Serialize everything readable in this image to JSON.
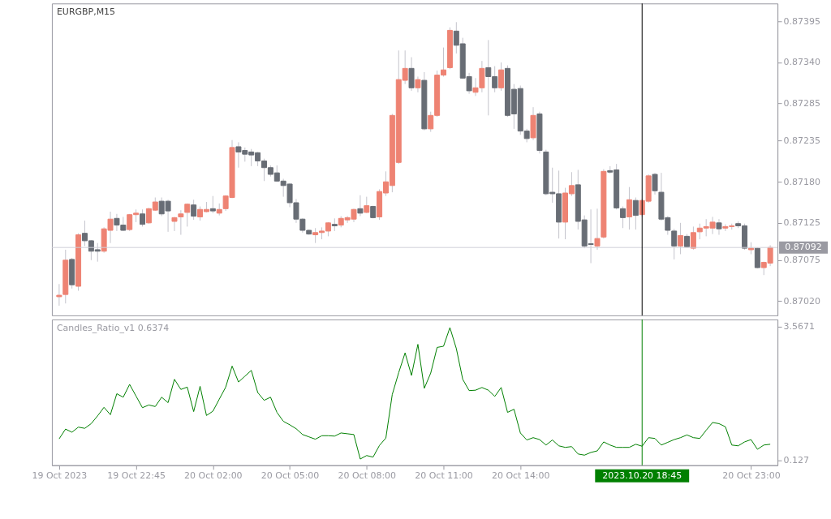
{
  "chart_data": [
    {
      "type": "candlestick",
      "title": "EURGBP,M15",
      "categories": [
        "19 Oct 2023",
        null,
        null,
        null,
        null,
        null,
        null,
        null,
        null,
        null,
        null,
        null,
        "19 Oct 22:45",
        null,
        null,
        null,
        null,
        null,
        null,
        null,
        null,
        null,
        null,
        null,
        "20 Oct 02:00",
        null,
        null,
        null,
        null,
        null,
        null,
        null,
        null,
        null,
        null,
        null,
        "20 Oct 05:00",
        null,
        null,
        null,
        null,
        null,
        null,
        null,
        null,
        null,
        null,
        null,
        "20 Oct 08:00",
        null,
        null,
        null,
        null,
        null,
        null,
        null,
        null,
        null,
        null,
        null,
        "20 Oct 11:00",
        null,
        null,
        null,
        null,
        null,
        null,
        null,
        null,
        null,
        null,
        null,
        "20 Oct 14:00",
        null,
        null,
        null,
        null,
        null,
        null,
        null,
        null,
        null,
        null,
        null,
        null,
        null,
        null,
        null,
        null,
        null,
        null,
        "2023.10.20 18:45",
        null,
        null,
        null,
        null,
        null,
        null,
        null,
        null,
        null,
        null,
        null,
        null,
        null,
        null,
        null,
        null,
        "20 Oct 23:00",
        null,
        null,
        null
      ],
      "ohlc": [
        [
          0.87026,
          0.87043,
          0.87014,
          0.87028
        ],
        [
          0.87029,
          0.87089,
          0.87017,
          0.87075
        ],
        [
          0.87076,
          0.87078,
          0.87037,
          0.87042
        ],
        [
          0.8704,
          0.87111,
          0.87034,
          0.87109
        ],
        [
          0.87111,
          0.87128,
          0.87094,
          0.87101
        ],
        [
          0.87101,
          0.87102,
          0.87075,
          0.87087
        ],
        [
          0.87089,
          0.87098,
          0.87073,
          0.87087
        ],
        [
          0.87087,
          0.87119,
          0.87085,
          0.87117
        ],
        [
          0.87115,
          0.8714,
          0.87098,
          0.8713
        ],
        [
          0.87131,
          0.87137,
          0.87114,
          0.87122
        ],
        [
          0.87122,
          0.87133,
          0.87114,
          0.87115
        ],
        [
          0.87116,
          0.87137,
          0.87114,
          0.87136
        ],
        [
          0.87136,
          0.87143,
          0.87126,
          0.87138
        ],
        [
          0.87137,
          0.87143,
          0.8712,
          0.87123
        ],
        [
          0.87125,
          0.87145,
          0.87124,
          0.87144
        ],
        [
          0.87142,
          0.87159,
          0.87141,
          0.87153
        ],
        [
          0.87154,
          0.87159,
          0.87134,
          0.87137
        ],
        [
          0.87154,
          0.87156,
          0.87113,
          0.87141
        ],
        [
          0.87127,
          0.87133,
          0.87114,
          0.87132
        ],
        [
          0.87133,
          0.87142,
          0.87109,
          0.87137
        ],
        [
          0.87139,
          0.87151,
          0.8712,
          0.8715
        ],
        [
          0.87149,
          0.87156,
          0.87129,
          0.87134
        ],
        [
          0.87133,
          0.87147,
          0.87128,
          0.87143
        ],
        [
          0.8714,
          0.87153,
          0.87139,
          0.87143
        ],
        [
          0.87144,
          0.87161,
          0.87138,
          0.87141
        ],
        [
          0.87138,
          0.87151,
          0.87135,
          0.87143
        ],
        [
          0.87144,
          0.87162,
          0.87141,
          0.87161
        ],
        [
          0.87159,
          0.87236,
          0.87158,
          0.87226
        ],
        [
          0.87227,
          0.87233,
          0.87199,
          0.8722
        ],
        [
          0.87222,
          0.87226,
          0.87207,
          0.87217
        ],
        [
          0.8722,
          0.87224,
          0.87201,
          0.87216
        ],
        [
          0.87219,
          0.8722,
          0.87201,
          0.87208
        ],
        [
          0.87208,
          0.87211,
          0.87181,
          0.87199
        ],
        [
          0.87199,
          0.87202,
          0.87187,
          0.8719
        ],
        [
          0.87192,
          0.87202,
          0.8718,
          0.87181
        ],
        [
          0.87181,
          0.87184,
          0.8716,
          0.87175
        ],
        [
          0.87177,
          0.87178,
          0.87146,
          0.87152
        ],
        [
          0.87152,
          0.87157,
          0.87125,
          0.8713
        ],
        [
          0.8713,
          0.87131,
          0.87112,
          0.87115
        ],
        [
          0.87115,
          0.87116,
          0.87109,
          0.8711
        ],
        [
          0.87109,
          0.87118,
          0.87098,
          0.87112
        ],
        [
          0.87112,
          0.87119,
          0.87103,
          0.87114
        ],
        [
          0.87114,
          0.87126,
          0.87107,
          0.87125
        ],
        [
          0.87123,
          0.87131,
          0.87114,
          0.87121
        ],
        [
          0.87122,
          0.87134,
          0.87119,
          0.87131
        ],
        [
          0.87129,
          0.87134,
          0.87125,
          0.87132
        ],
        [
          0.8713,
          0.87144,
          0.87126,
          0.87143
        ],
        [
          0.87144,
          0.87162,
          0.87134,
          0.87138
        ],
        [
          0.87139,
          0.8716,
          0.87138,
          0.87148
        ],
        [
          0.87147,
          0.87148,
          0.87131,
          0.87132
        ],
        [
          0.87133,
          0.8717,
          0.87129,
          0.87167
        ],
        [
          0.87165,
          0.87194,
          0.87161,
          0.8718
        ],
        [
          0.87175,
          0.87271,
          0.87166,
          0.87269
        ],
        [
          0.87206,
          0.87356,
          0.87204,
          0.87317
        ],
        [
          0.87316,
          0.87356,
          0.87311,
          0.87332
        ],
        [
          0.87332,
          0.87347,
          0.87302,
          0.87306
        ],
        [
          0.87306,
          0.87321,
          0.873,
          0.87317
        ],
        [
          0.87316,
          0.87327,
          0.87249,
          0.87251
        ],
        [
          0.87251,
          0.87274,
          0.87247,
          0.87269
        ],
        [
          0.87269,
          0.87329,
          0.87267,
          0.87323
        ],
        [
          0.87323,
          0.8736,
          0.87321,
          0.8733
        ],
        [
          0.87333,
          0.87387,
          0.87331,
          0.87383
        ],
        [
          0.87382,
          0.87394,
          0.87352,
          0.87363
        ],
        [
          0.87365,
          0.87373,
          0.87318,
          0.87319
        ],
        [
          0.87321,
          0.87326,
          0.87298,
          0.87302
        ],
        [
          0.873,
          0.87319,
          0.87295,
          0.87306
        ],
        [
          0.87306,
          0.87342,
          0.873,
          0.87332
        ],
        [
          0.87333,
          0.8737,
          0.87269,
          0.87321
        ],
        [
          0.87321,
          0.87335,
          0.873,
          0.87306
        ],
        [
          0.87306,
          0.8734,
          0.87302,
          0.8733
        ],
        [
          0.87332,
          0.87336,
          0.87267,
          0.87269
        ],
        [
          0.87304,
          0.87311,
          0.87251,
          0.87271
        ],
        [
          0.87305,
          0.87309,
          0.87243,
          0.87248
        ],
        [
          0.87248,
          0.87251,
          0.87233,
          0.87238
        ],
        [
          0.87239,
          0.8728,
          0.87236,
          0.87269
        ],
        [
          0.87271,
          0.87274,
          0.87218,
          0.87222
        ],
        [
          0.8722,
          0.87223,
          0.87162,
          0.87164
        ],
        [
          0.87166,
          0.87199,
          0.87152,
          0.87164
        ],
        [
          0.87164,
          0.87195,
          0.87104,
          0.87126
        ],
        [
          0.87126,
          0.87172,
          0.87103,
          0.87165
        ],
        [
          0.87164,
          0.87193,
          0.87161,
          0.87175
        ],
        [
          0.87176,
          0.87196,
          0.87116,
          0.87127
        ],
        [
          0.87129,
          0.87135,
          0.87091,
          0.87094
        ],
        [
          0.87097,
          0.87143,
          0.87071,
          0.87096
        ],
        [
          0.87094,
          0.87144,
          0.87089,
          0.87104
        ],
        [
          0.87106,
          0.87197,
          0.87104,
          0.87194
        ],
        [
          0.87195,
          0.87201,
          0.87191,
          0.87193
        ],
        [
          0.87196,
          0.87204,
          0.87143,
          0.87145
        ],
        [
          0.87144,
          0.87147,
          0.87118,
          0.87132
        ],
        [
          0.87133,
          0.87173,
          0.87116,
          0.87156
        ],
        [
          0.87155,
          0.87159,
          0.87116,
          0.87135
        ],
        [
          0.87136,
          0.87157,
          0.87133,
          0.87155
        ],
        [
          0.87154,
          0.8719,
          0.87152,
          0.87188
        ],
        [
          0.8719,
          0.87192,
          0.87163,
          0.87168
        ],
        [
          0.87166,
          0.87192,
          0.87128,
          0.8713
        ],
        [
          0.87132,
          0.87134,
          0.87109,
          0.87115
        ],
        [
          0.87114,
          0.87117,
          0.87076,
          0.87094
        ],
        [
          0.87094,
          0.87125,
          0.87083,
          0.87108
        ],
        [
          0.87107,
          0.8711,
          0.87092,
          0.87093
        ],
        [
          0.87091,
          0.8712,
          0.87089,
          0.87112
        ],
        [
          0.87113,
          0.87124,
          0.87103,
          0.87118
        ],
        [
          0.87118,
          0.8713,
          0.87107,
          0.8712
        ],
        [
          0.87118,
          0.87133,
          0.8711,
          0.87126
        ],
        [
          0.87125,
          0.8713,
          0.87109,
          0.87117
        ],
        [
          0.87118,
          0.87123,
          0.87114,
          0.8712
        ],
        [
          0.8712,
          0.87124,
          0.87116,
          0.87121
        ],
        [
          0.87124,
          0.87127,
          0.87118,
          0.87121
        ],
        [
          0.87121,
          0.87124,
          0.87089,
          0.87091
        ],
        [
          0.87089,
          0.87099,
          0.87083,
          0.87091
        ],
        [
          0.87091,
          0.87092,
          0.87064,
          0.87065
        ],
        [
          0.87065,
          0.87073,
          0.87055,
          0.87072
        ],
        [
          0.87071,
          0.87095,
          0.87067,
          0.87092
        ]
      ],
      "colors": [
        "#ee8373",
        "#ee8373",
        "#686d75",
        "#ee8373",
        "#686d75",
        "#686d75",
        "#686d75",
        "#ee8373",
        "#ee8373",
        "#686d75",
        "#686d75",
        "#ee8373",
        "#ee8373",
        "#686d75",
        "#ee8373",
        "#ee8373",
        "#686d75",
        "#686d75",
        "#ee8373",
        "#ee8373",
        "#ee8373",
        "#686d75",
        "#ee8373",
        "#ee8373",
        "#686d75",
        "#ee8373",
        "#ee8373",
        "#ee8373",
        "#686d75",
        "#686d75",
        "#686d75",
        "#686d75",
        "#686d75",
        "#686d75",
        "#686d75",
        "#686d75",
        "#686d75",
        "#686d75",
        "#686d75",
        "#686d75",
        "#ee8373",
        "#ee8373",
        "#ee8373",
        "#686d75",
        "#ee8373",
        "#ee8373",
        "#ee8373",
        "#686d75",
        "#ee8373",
        "#686d75",
        "#ee8373",
        "#ee8373",
        "#ee8373",
        "#ee8373",
        "#ee8373",
        "#686d75",
        "#ee8373",
        "#686d75",
        "#ee8373",
        "#ee8373",
        "#ee8373",
        "#ee8373",
        "#686d75",
        "#686d75",
        "#686d75",
        "#ee8373",
        "#ee8373",
        "#686d75",
        "#686d75",
        "#ee8373",
        "#686d75",
        "#686d75",
        "#686d75",
        "#686d75",
        "#ee8373",
        "#686d75",
        "#686d75",
        "#686d75",
        "#686d75",
        "#ee8373",
        "#ee8373",
        "#686d75",
        "#686d75",
        "#686d75",
        "#ee8373",
        "#ee8373",
        "#686d75",
        "#686d75",
        "#686d75",
        "#ee8373",
        "#686d75",
        "#ee8373",
        "#ee8373",
        "#686d75",
        "#686d75",
        "#686d75",
        "#686d75",
        "#ee8373",
        "#686d75",
        "#ee8373",
        "#ee8373",
        "#ee8373",
        "#ee8373",
        "#686d75",
        "#ee8373",
        "#ee8373",
        "#686d75",
        "#686d75",
        "#ee8373",
        "#686d75",
        "#ee8373",
        "#ee8373"
      ],
      "ylim": [
        0.87001,
        0.87419
      ],
      "yticks": [
        0.87395,
        {
          "value": 0.8734,
          "label": "0.87340"
        },
        0.87285,
        0.87235,
        {
          "value": 0.8718,
          "label": "0.87180"
        },
        0.87125,
        0.87075,
        {
          "value": 0.8702,
          "label": "0.87020"
        }
      ],
      "ref_lines": [
        {
          "axis": "y",
          "value": 0.87092,
          "label": "0.87092",
          "color": "#d0d0d8"
        },
        {
          "axis": "x",
          "value": "2023.10.20 18:45",
          "color": "#000000"
        }
      ],
      "tick_labels": "y"
    },
    {
      "type": "line",
      "title": "Candles_Ratio_v1 0.6374",
      "categories": [
        "19 Oct 2023",
        null,
        null,
        null,
        null,
        null,
        null,
        null,
        null,
        null,
        null,
        null,
        "19 Oct 22:45",
        null,
        null,
        null,
        null,
        null,
        null,
        null,
        null,
        null,
        null,
        null,
        "20 Oct 02:00",
        null,
        null,
        null,
        null,
        null,
        null,
        null,
        null,
        null,
        null,
        null,
        "20 Oct 05:00",
        null,
        null,
        null,
        null,
        null,
        null,
        null,
        null,
        null,
        null,
        null,
        "20 Oct 08:00",
        null,
        null,
        null,
        null,
        null,
        null,
        null,
        null,
        null,
        null,
        null,
        "20 Oct 11:00",
        null,
        null,
        null,
        null,
        null,
        null,
        null,
        null,
        null,
        null,
        null,
        "20 Oct 14:00",
        null,
        null,
        null,
        null,
        null,
        null,
        null,
        null,
        null,
        null,
        null,
        null,
        null,
        null,
        null,
        null,
        null,
        null,
        "2023.10.20 18:45",
        null,
        null,
        null,
        null,
        null,
        null,
        null,
        null,
        null,
        null,
        null,
        null,
        null,
        null,
        null,
        null,
        "20 Oct 23:00",
        null,
        null,
        null
      ],
      "series": [
        {
          "color": "#008000",
          "values": [
            0.68,
            0.93,
            0.85,
            0.98,
            0.95,
            1.07,
            1.27,
            1.49,
            1.3,
            1.84,
            1.75,
            2.08,
            1.78,
            1.48,
            1.55,
            1.51,
            1.75,
            1.61,
            2.21,
            1.95,
            2.01,
            1.38,
            2.03,
            1.28,
            1.39,
            1.7,
            2.01,
            2.55,
            2.14,
            2.29,
            2.44,
            1.87,
            1.67,
            1.75,
            1.36,
            1.13,
            1.04,
            0.94,
            0.79,
            0.73,
            0.67,
            0.76,
            0.76,
            0.75,
            0.83,
            0.81,
            0.79,
            0.16,
            0.25,
            0.21,
            0.51,
            0.7,
            1.82,
            2.38,
            2.89,
            2.31,
            3.11,
            1.98,
            2.37,
            3.03,
            3.06,
            3.54,
            3.0,
            2.21,
            1.92,
            1.93,
            2.0,
            1.93,
            1.77,
            2.0,
            1.36,
            1.44,
            0.83,
            0.65,
            0.71,
            0.66,
            0.52,
            0.65,
            0.5,
            0.46,
            0.48,
            0.29,
            0.26,
            0.33,
            0.37,
            0.6,
            0.52,
            0.46,
            0.46,
            0.46,
            0.54,
            0.49,
            0.71,
            0.69,
            0.52,
            0.59,
            0.66,
            0.71,
            0.78,
            0.71,
            0.69,
            0.9,
            1.1,
            1.07,
            0.99,
            0.52,
            0.5,
            0.6,
            0.66,
            0.41,
            0.52,
            0.54
          ]
        }
      ],
      "ylim": [
        0,
        3.75
      ],
      "yticks": [
        3.5671,
        0.127
      ],
      "ref_lines": [
        {
          "axis": "x",
          "value": "2023.10.20 18:45",
          "color": "#008000"
        }
      ]
    }
  ]
}
